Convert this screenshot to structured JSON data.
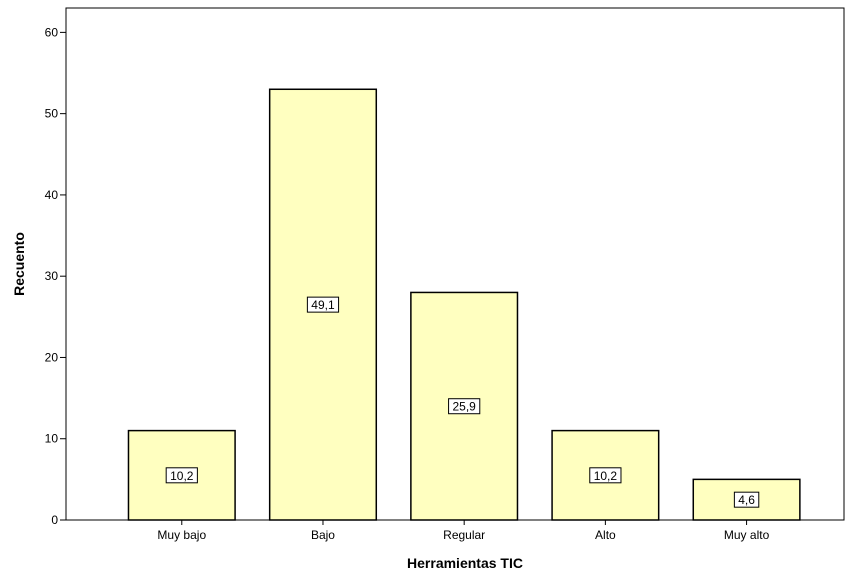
{
  "chart_data": {
    "type": "bar",
    "categories": [
      "Muy bajo",
      "Bajo",
      "Regular",
      "Alto",
      "Muy alto"
    ],
    "values": [
      11,
      53,
      28,
      11,
      5
    ],
    "data_labels": [
      "10,2",
      "49,1",
      "25,9",
      "10,2",
      "4,6"
    ],
    "xlabel": "Herramientas TIC",
    "ylabel": "Recuento",
    "ylim": [
      0,
      63
    ],
    "yticks": [
      0,
      10,
      20,
      30,
      40,
      50,
      60
    ],
    "grid": false,
    "colors": {
      "bar_fill": "#ffffc0",
      "bar_stroke": "#000000",
      "plot_background": "#ffffff",
      "label_box_fill": "#ffffff"
    }
  }
}
